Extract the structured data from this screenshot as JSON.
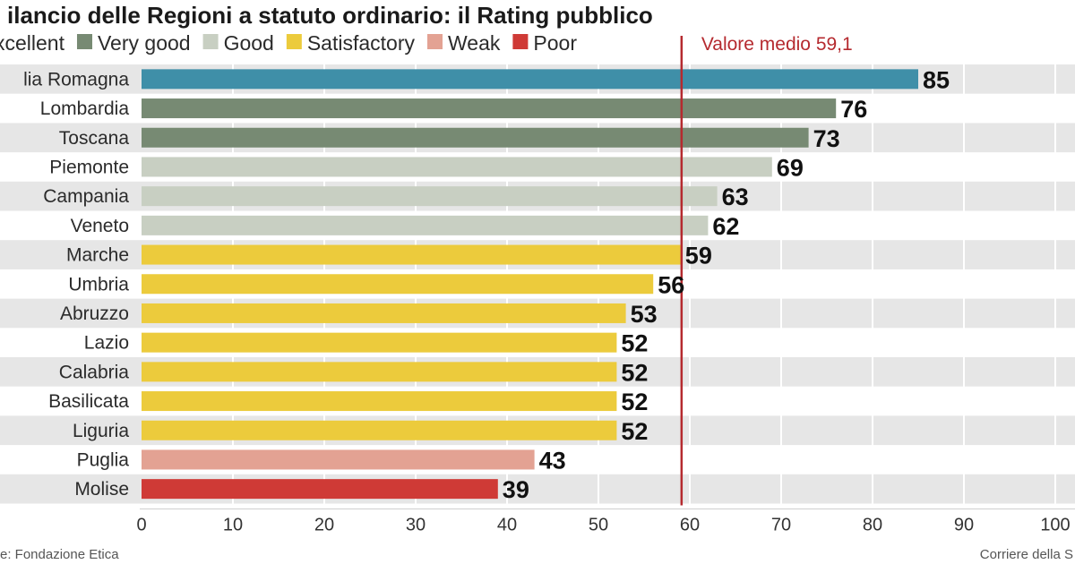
{
  "chart_data": {
    "type": "bar",
    "orientation": "horizontal",
    "title": "ilancio delle Regioni a statuto ordinario: il Rating pubblico",
    "legend": [
      {
        "label": "xcellent",
        "color": "#3f8fa8"
      },
      {
        "label": "Very good",
        "color": "#778a73"
      },
      {
        "label": "Good",
        "color": "#c8cfc2"
      },
      {
        "label": "Satisfactory",
        "color": "#eccb3c"
      },
      {
        "label": "Weak",
        "color": "#e3a293"
      },
      {
        "label": "Poor",
        "color": "#cf3a36"
      }
    ],
    "categories": [
      "lia Romagna",
      "Lombardia",
      "Toscana",
      "Piemonte",
      "Campania",
      "Veneto",
      "Marche",
      "Umbria",
      "Abruzzo",
      "Lazio",
      "Calabria",
      "Basilicata",
      "Liguria",
      "Puglia",
      "Molise"
    ],
    "values": [
      85,
      76,
      73,
      69,
      63,
      62,
      59,
      56,
      53,
      52,
      52,
      52,
      52,
      43,
      39
    ],
    "value_labels": [
      "85",
      "76",
      "73",
      "69",
      "63",
      "62",
      "59",
      "56",
      "53",
      "52",
      "52",
      "52",
      "52",
      "43",
      "39"
    ],
    "rating_class": [
      "xcellent",
      "Very good",
      "Very good",
      "Good",
      "Good",
      "Good",
      "Satisfactory",
      "Satisfactory",
      "Satisfactory",
      "Satisfactory",
      "Satisfactory",
      "Satisfactory",
      "Satisfactory",
      "Weak",
      "Poor"
    ],
    "xlim": [
      0,
      100
    ],
    "x_ticks": [
      0,
      10,
      20,
      30,
      40,
      50,
      60,
      70,
      80,
      90,
      100
    ],
    "x_tick_labels": [
      "0",
      "10",
      "20",
      "30",
      "40",
      "50",
      "60",
      "70",
      "80",
      "90",
      "100"
    ],
    "reference_line": {
      "value": 59.1,
      "label": "Valore medio 59,1",
      "color": "#b52a2f"
    },
    "grid": true,
    "source_left": "e: Fondazione Etica",
    "source_right": "Corriere della S"
  }
}
